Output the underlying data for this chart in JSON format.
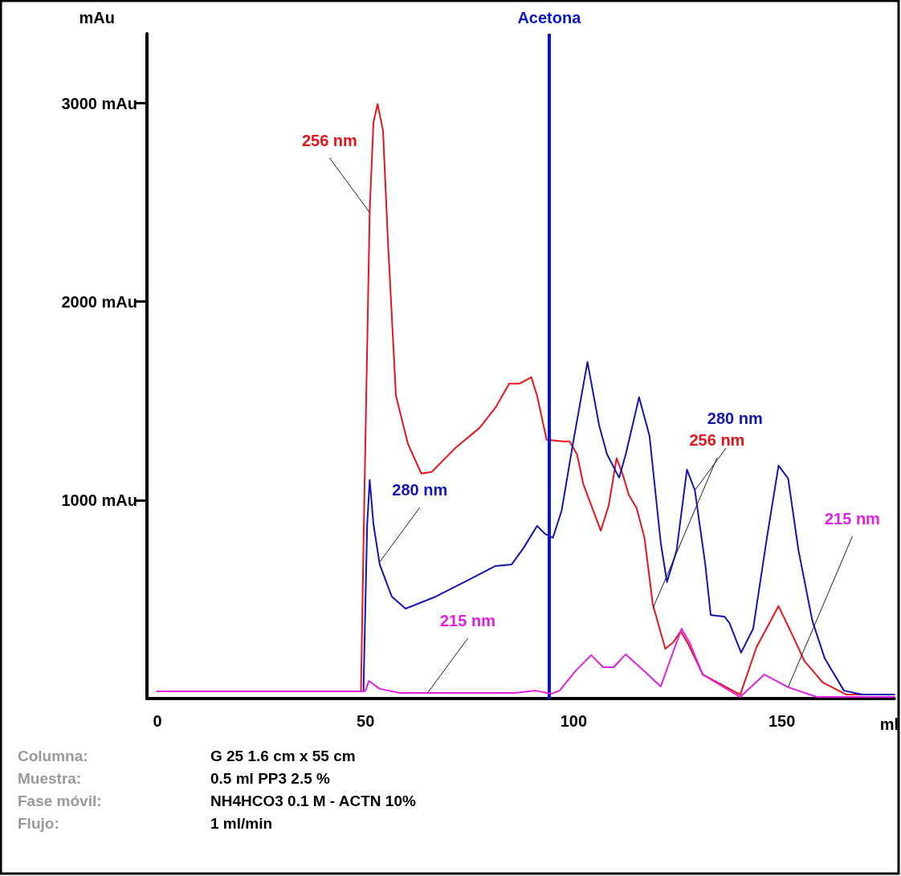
{
  "chart_data": {
    "type": "line",
    "xlabel": "ml",
    "ylabel": "mAu",
    "xlim": [
      -2.5,
      177
    ],
    "xticks": [
      0,
      50,
      100,
      150
    ],
    "ylim": [
      0,
      3350
    ],
    "yticks": [
      {
        "value": 1000,
        "label": "1000 mAu"
      },
      {
        "value": 2000,
        "label": "2000 mAu"
      },
      {
        "value": 3000,
        "label": "3000 mAu"
      }
    ],
    "grid": false,
    "marker": "none",
    "line_style": "solid",
    "series": [
      {
        "color": "#e8141b",
        "x": [
          0,
          48.9,
          49.6,
          51,
          51.9,
          52.9,
          54.2,
          55.4,
          57.3,
          60.2,
          63.4,
          65.9,
          71.6,
          77.4,
          81.2,
          84.5,
          87,
          89.8,
          91.2,
          93.5,
          97.5,
          99,
          100.8,
          102.3,
          106.5,
          108.4,
          110.3,
          111.9,
          113.2,
          115.1,
          117,
          119,
          122,
          123.9,
          125.7,
          127.6,
          131,
          140,
          143.9,
          149.2,
          152.7,
          155.4,
          159.8,
          165.5,
          177
        ],
        "values": [
          36,
          36,
          879,
          2457,
          2903,
          2996,
          2862,
          2296,
          1526,
          1283,
          1134,
          1142,
          1263,
          1364,
          1466,
          1587,
          1587,
          1619,
          1526,
          1304,
          1296,
          1296,
          1231,
          1081,
          846,
          972,
          1211,
          1121,
          1028,
          960,
          810,
          474,
          251,
          283,
          340,
          271,
          121,
          20,
          259,
          466,
          312,
          190,
          81,
          20,
          20
        ]
      },
      {
        "color": "#1414b4",
        "x": [
          0,
          49.5,
          50.4,
          51,
          51.9,
          53.4,
          56.3,
          59.6,
          66.9,
          74.5,
          81.2,
          85.1,
          87.9,
          91.2,
          93.1,
          95,
          97.1,
          99.8,
          103.3,
          106.1,
          108,
          110.9,
          112.5,
          115.7,
          118.2,
          120.9,
          122.4,
          124.7,
          127.2,
          129.1,
          131.6,
          132.9,
          136.2,
          137.4,
          140.2,
          143.1,
          146.4,
          149.2,
          151.5,
          154,
          157.3,
          160.3,
          164.9,
          169.3,
          177
        ],
        "values": [
          36,
          36,
          879,
          1101,
          879,
          676,
          514,
          453,
          514,
          595,
          668,
          676,
          757,
          870,
          830,
          810,
          947,
          1283,
          1696,
          1377,
          1231,
          1113,
          1231,
          1518,
          1324,
          785,
          587,
          745,
          1154,
          1049,
          676,
          421,
          413,
          381,
          231,
          352,
          810,
          1174,
          1109,
          745,
          393,
          202,
          40,
          20,
          20
        ]
      },
      {
        "color": "#e020e0",
        "x": [
          0,
          49.5,
          50,
          50.8,
          53.4,
          58.2,
          86,
          90.8,
          94.6,
          96.6,
          100.4,
          104.2,
          107.1,
          109.6,
          112.5,
          117,
          120.9,
          124.3,
          125.9,
          127.8,
          131,
          140,
          145.8,
          151.5,
          158.4,
          177
        ],
        "values": [
          36,
          36,
          40,
          89,
          49,
          28,
          28,
          40,
          24,
          40,
          138,
          219,
          158,
          158,
          223,
          138,
          61,
          259,
          352,
          283,
          121,
          8,
          121,
          57,
          8,
          8
        ]
      }
    ],
    "ref_lines": [
      {
        "axis": "x",
        "value": 94.1,
        "label": "Acetona",
        "color": "#0a14c8"
      }
    ],
    "annotations": [
      {
        "text": "256 nm",
        "x": 51,
        "y": 2449
      },
      {
        "text": "280 nm",
        "x": 53.4,
        "y": 688
      },
      {
        "text": "256 nm",
        "x": 119,
        "y": 453
      },
      {
        "text": "280 nm",
        "x": 129.1,
        "y": 1049
      },
      {
        "text": "215 nm",
        "x": 64.9,
        "y": 28
      },
      {
        "text": "215 nm",
        "x": 151.5,
        "y": 57
      },
      "Columna: G 25 1.6 cm x 55 cm",
      "Muestra: 0.5 ml PP3 2.5 %",
      "Fase móvil: NH4HCO3 0.1 M - ACTN 10%",
      "Flujo: 1 ml/min"
    ]
  }
}
